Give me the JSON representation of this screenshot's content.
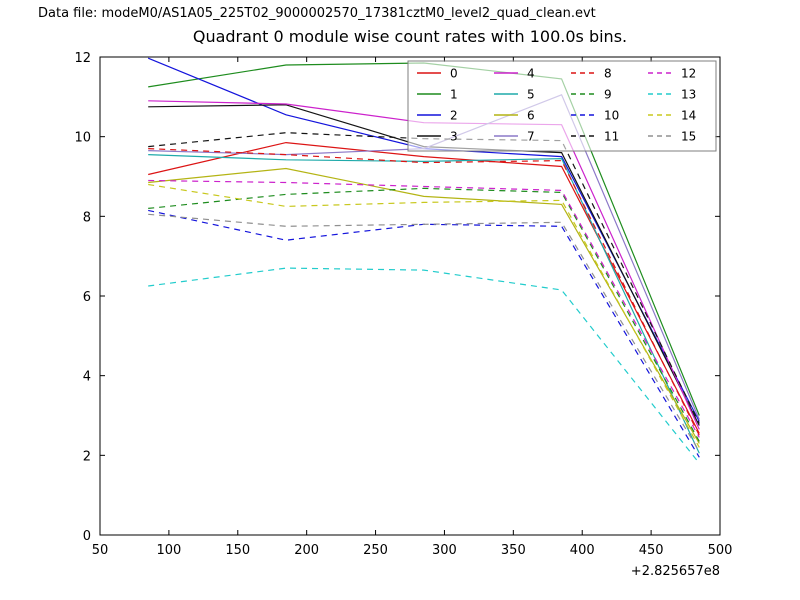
{
  "figure": {
    "data_file_label": "Data file: modeM0/AS1A05_225T02_9000002570_17381cztM0_level2_quad_clean.evt"
  },
  "chart_data": {
    "type": "line",
    "title": "Quadrant 0 module wise count rates with 100.0s bins.",
    "xlabel": "",
    "ylabel": "",
    "x_axis_offset": "+2.825657e8",
    "xlim": [
      50,
      500
    ],
    "ylim": [
      0,
      12
    ],
    "x_ticks": [
      50,
      100,
      150,
      200,
      250,
      300,
      350,
      400,
      450,
      500
    ],
    "y_ticks": [
      0,
      2,
      4,
      6,
      8,
      10,
      12
    ],
    "grid": false,
    "legend_position": "upper right",
    "x": [
      85,
      185,
      285,
      385,
      485
    ],
    "series": [
      {
        "name": "0",
        "color": "#dc1414",
        "linestyle": "solid",
        "values": [
          9.05,
          9.85,
          9.5,
          9.25,
          2.55
        ]
      },
      {
        "name": "1",
        "color": "#1e8c1e",
        "linestyle": "solid",
        "values": [
          11.25,
          11.8,
          11.85,
          11.45,
          3.0
        ]
      },
      {
        "name": "2",
        "color": "#1414dc",
        "linestyle": "solid",
        "values": [
          11.97,
          10.55,
          9.7,
          9.5,
          2.85
        ]
      },
      {
        "name": "3",
        "color": "#141414",
        "linestyle": "solid",
        "values": [
          10.75,
          10.8,
          9.75,
          9.6,
          2.75
        ]
      },
      {
        "name": "4",
        "color": "#cc22cc",
        "linestyle": "solid",
        "values": [
          10.9,
          10.82,
          10.35,
          10.3,
          2.65
        ]
      },
      {
        "name": "5",
        "color": "#1faaaa",
        "linestyle": "solid",
        "values": [
          9.55,
          9.42,
          9.38,
          9.45,
          2.05
        ]
      },
      {
        "name": "6",
        "color": "#b4b414",
        "linestyle": "solid",
        "values": [
          8.85,
          9.2,
          8.5,
          8.3,
          2.3
        ]
      },
      {
        "name": "7",
        "color": "#8c78c8",
        "linestyle": "solid",
        "values": [
          9.65,
          9.55,
          9.7,
          11.05,
          2.9
        ]
      },
      {
        "name": "8",
        "color": "#dc1414",
        "linestyle": "dashed",
        "values": [
          9.7,
          9.55,
          9.35,
          9.4,
          2.5
        ]
      },
      {
        "name": "9",
        "color": "#1e8c1e",
        "linestyle": "dashed",
        "values": [
          8.2,
          8.55,
          8.7,
          8.6,
          2.35
        ]
      },
      {
        "name": "10",
        "color": "#1414dc",
        "linestyle": "dashed",
        "values": [
          8.15,
          7.4,
          7.8,
          7.75,
          1.95
        ]
      },
      {
        "name": "11",
        "color": "#141414",
        "linestyle": "dashed",
        "values": [
          9.75,
          10.1,
          9.95,
          9.9,
          2.8
        ]
      },
      {
        "name": "12",
        "color": "#cc22cc",
        "linestyle": "dashed",
        "values": [
          8.9,
          8.85,
          8.75,
          8.65,
          2.45
        ]
      },
      {
        "name": "13",
        "color": "#22cccc",
        "linestyle": "dashed",
        "values": [
          6.25,
          6.7,
          6.65,
          6.15,
          1.8
        ]
      },
      {
        "name": "14",
        "color": "#c8c81e",
        "linestyle": "dashed",
        "values": [
          8.8,
          8.25,
          8.35,
          8.4,
          2.2
        ]
      },
      {
        "name": "15",
        "color": "#909090",
        "linestyle": "dashed",
        "values": [
          8.05,
          7.75,
          7.8,
          7.85,
          2.1
        ]
      }
    ]
  }
}
